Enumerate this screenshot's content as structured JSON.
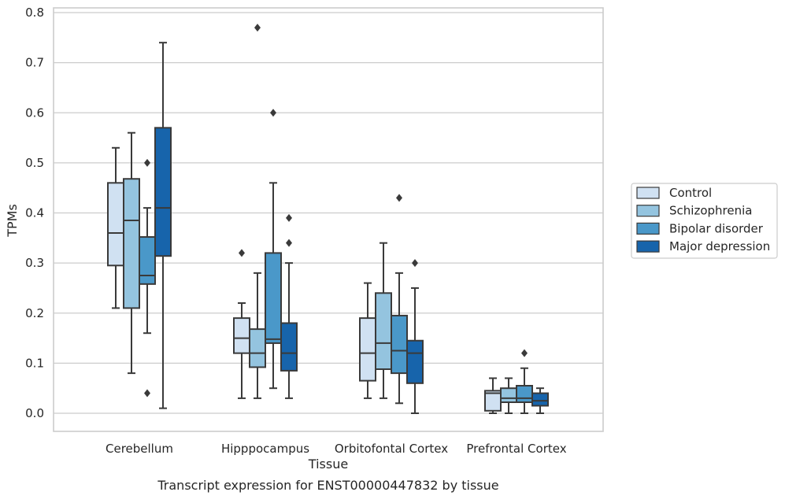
{
  "chart_data": {
    "type": "box",
    "title": "",
    "caption": "Transcript expression for ENST00000447832 by tissue",
    "xlabel": "Tissue",
    "ylabel": "TPMs",
    "ylim": [
      -0.04,
      0.81
    ],
    "yticks": [
      "0.0",
      "0.1",
      "0.2",
      "0.3",
      "0.4",
      "0.5",
      "0.6",
      "0.7",
      "0.8"
    ],
    "ytick_values": [
      0.0,
      0.1,
      0.2,
      0.3,
      0.4,
      0.5,
      0.6,
      0.7,
      0.8
    ],
    "grid": "horizontal",
    "legend_position": "right",
    "categories": [
      "Cerebellum",
      "Hipppocampus",
      "Orbitofontal Cortex",
      "Prefrontal Cortex"
    ],
    "series": [
      {
        "name": "Control",
        "color": "#d0e1f2",
        "boxes": [
          {
            "whislo": 0.21,
            "q1": 0.295,
            "med": 0.36,
            "q3": 0.46,
            "whishi": 0.53,
            "fliers": []
          },
          {
            "whislo": 0.03,
            "q1": 0.12,
            "med": 0.15,
            "q3": 0.19,
            "whishi": 0.22,
            "fliers": [
              0.32
            ]
          },
          {
            "whislo": 0.03,
            "q1": 0.065,
            "med": 0.12,
            "q3": 0.19,
            "whishi": 0.26,
            "fliers": []
          },
          {
            "whislo": 0.0,
            "q1": 0.005,
            "med": 0.04,
            "q3": 0.045,
            "whishi": 0.07,
            "fliers": []
          }
        ]
      },
      {
        "name": "Schizophrenia",
        "color": "#94c4df",
        "boxes": [
          {
            "whislo": 0.08,
            "q1": 0.21,
            "med": 0.385,
            "q3": 0.468,
            "whishi": 0.56,
            "fliers": []
          },
          {
            "whislo": 0.03,
            "q1": 0.092,
            "med": 0.12,
            "q3": 0.168,
            "whishi": 0.28,
            "fliers": [
              0.77
            ]
          },
          {
            "whislo": 0.03,
            "q1": 0.088,
            "med": 0.14,
            "q3": 0.24,
            "whishi": 0.34,
            "fliers": []
          },
          {
            "whislo": 0.0,
            "q1": 0.022,
            "med": 0.03,
            "q3": 0.05,
            "whishi": 0.07,
            "fliers": []
          }
        ]
      },
      {
        "name": "Bipolar disorder",
        "color": "#4a98c9",
        "boxes": [
          {
            "whislo": 0.16,
            "q1": 0.258,
            "med": 0.275,
            "q3": 0.352,
            "whishi": 0.41,
            "fliers": [
              0.5,
              0.04
            ]
          },
          {
            "whislo": 0.05,
            "q1": 0.14,
            "med": 0.148,
            "q3": 0.32,
            "whishi": 0.46,
            "fliers": [
              0.6
            ]
          },
          {
            "whislo": 0.02,
            "q1": 0.08,
            "med": 0.125,
            "q3": 0.195,
            "whishi": 0.28,
            "fliers": [
              0.43
            ]
          },
          {
            "whislo": 0.0,
            "q1": 0.022,
            "med": 0.03,
            "q3": 0.055,
            "whishi": 0.09,
            "fliers": [
              0.12
            ]
          }
        ]
      },
      {
        "name": "Major depression",
        "color": "#1764ab",
        "boxes": [
          {
            "whislo": 0.01,
            "q1": 0.314,
            "med": 0.41,
            "q3": 0.57,
            "whishi": 0.74,
            "fliers": []
          },
          {
            "whislo": 0.03,
            "q1": 0.085,
            "med": 0.12,
            "q3": 0.18,
            "whishi": 0.3,
            "fliers": [
              0.39,
              0.34
            ]
          },
          {
            "whislo": 0.0,
            "q1": 0.06,
            "med": 0.12,
            "q3": 0.145,
            "whishi": 0.25,
            "fliers": [
              0.3
            ]
          },
          {
            "whislo": 0.0,
            "q1": 0.015,
            "med": 0.025,
            "q3": 0.04,
            "whishi": 0.05,
            "fliers": []
          }
        ]
      }
    ]
  }
}
